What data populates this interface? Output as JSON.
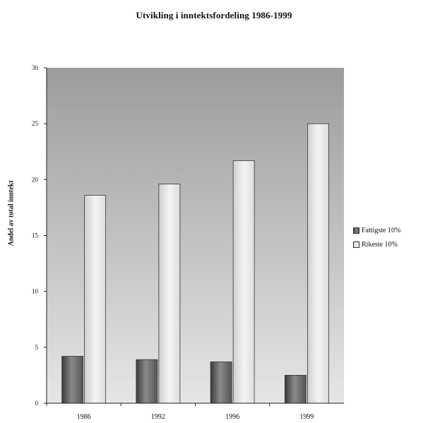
{
  "chart_data": {
    "type": "bar",
    "title": "Utvikling i inntektsfordeling 1986-1999",
    "ylabel": "Andel av total inntekt",
    "xlabel": "",
    "categories": [
      "1986",
      "1992",
      "1996",
      "1999"
    ],
    "ylim": [
      0,
      30
    ],
    "yticks": [
      "0",
      "5",
      "10",
      "15",
      "20",
      "25",
      "30"
    ],
    "series": [
      {
        "name": "Fattigste 10%",
        "values": [
          4.2,
          3.9,
          3.7,
          2.5
        ],
        "color": "#6e6e6e"
      },
      {
        "name": "Rikeste 10%",
        "values": [
          18.6,
          19.6,
          21.7,
          25.0
        ],
        "color": "#d9d9d9"
      }
    ],
    "grid": false,
    "legend_position": "right"
  }
}
